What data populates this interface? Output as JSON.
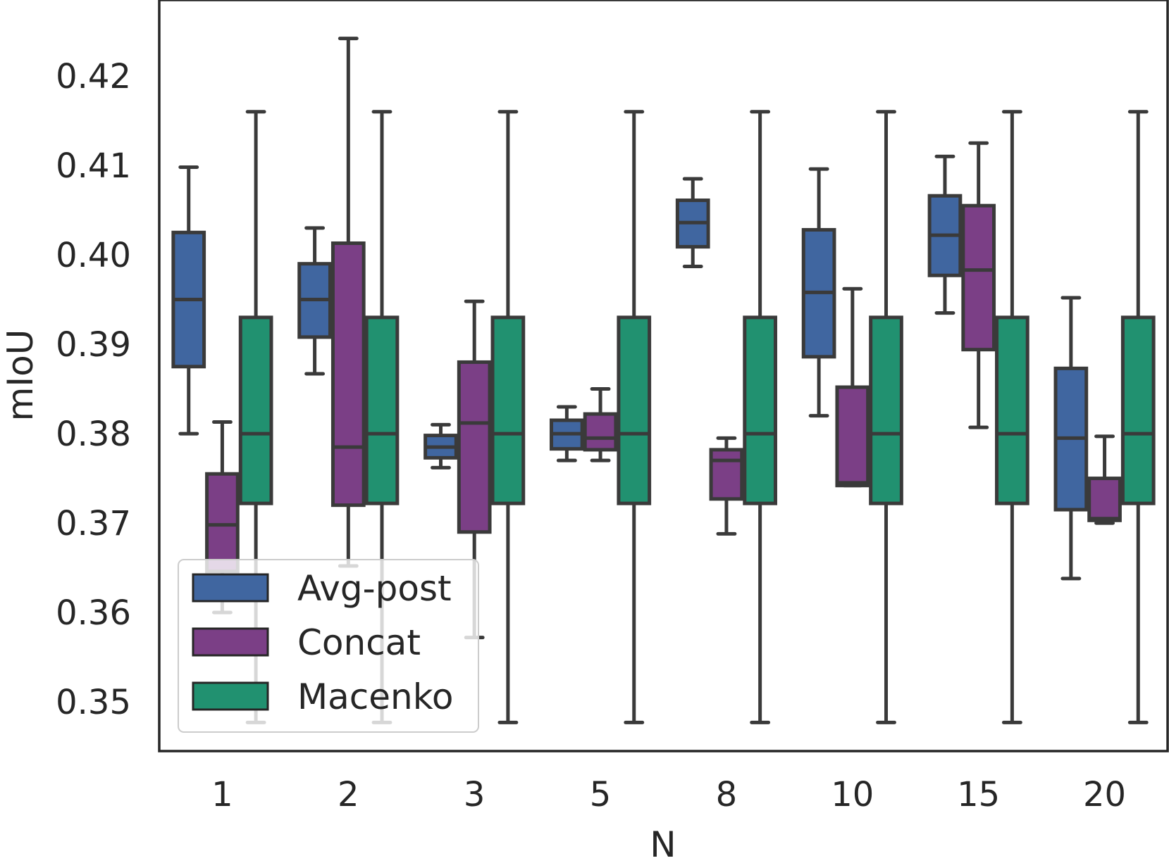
{
  "chart_data": {
    "type": "box",
    "title": "",
    "xlabel": "N",
    "ylabel": "mIoU",
    "ylim": [
      0.3445,
      0.4285
    ],
    "yticks": [
      "0.35",
      "0.36",
      "0.37",
      "0.38",
      "0.39",
      "0.40",
      "0.41",
      "0.42"
    ],
    "categories": [
      "1",
      "2",
      "3",
      "5",
      "8",
      "10",
      "15",
      "20"
    ],
    "legend": {
      "position": "lower-left",
      "entries": [
        "Avg-post",
        "Concat",
        "Macenko"
      ]
    },
    "series": [
      {
        "name": "Avg-post",
        "color": "#4066a0",
        "boxes": [
          {
            "whislo": 0.38,
            "q1": 0.3875,
            "med": 0.395,
            "q3": 0.4025,
            "whishi": 0.4098
          },
          {
            "whislo": 0.3867,
            "q1": 0.3908,
            "med": 0.395,
            "q3": 0.399,
            "whishi": 0.403
          },
          {
            "whislo": 0.3762,
            "q1": 0.3773,
            "med": 0.3785,
            "q3": 0.3798,
            "whishi": 0.381
          },
          {
            "whislo": 0.377,
            "q1": 0.3783,
            "med": 0.38,
            "q3": 0.3815,
            "whishi": 0.383
          },
          {
            "whislo": 0.3987,
            "q1": 0.4009,
            "med": 0.4036,
            "q3": 0.4061,
            "whishi": 0.4085
          },
          {
            "whislo": 0.382,
            "q1": 0.3886,
            "med": 0.3958,
            "q3": 0.4028,
            "whishi": 0.4096
          },
          {
            "whislo": 0.3935,
            "q1": 0.3977,
            "med": 0.4022,
            "q3": 0.4066,
            "whishi": 0.411
          },
          {
            "whislo": 0.3638,
            "q1": 0.3715,
            "med": 0.3795,
            "q3": 0.3873,
            "whishi": 0.3952
          }
        ]
      },
      {
        "name": "Concat",
        "color": "#7b3f86",
        "boxes": [
          {
            "whislo": 0.36,
            "q1": 0.3646,
            "med": 0.3698,
            "q3": 0.3755,
            "whishi": 0.3813
          },
          {
            "whislo": 0.3652,
            "q1": 0.372,
            "med": 0.3785,
            "q3": 0.4013,
            "whishi": 0.4242
          },
          {
            "whislo": 0.3572,
            "q1": 0.369,
            "med": 0.3812,
            "q3": 0.388,
            "whishi": 0.3948
          },
          {
            "whislo": 0.377,
            "q1": 0.3782,
            "med": 0.3795,
            "q3": 0.3822,
            "whishi": 0.385
          },
          {
            "whislo": 0.3688,
            "q1": 0.3727,
            "med": 0.377,
            "q3": 0.3782,
            "whishi": 0.3795
          },
          {
            "whislo": 0.3742,
            "q1": 0.3742,
            "med": 0.3745,
            "q3": 0.3852,
            "whishi": 0.3962
          },
          {
            "whislo": 0.3807,
            "q1": 0.3894,
            "med": 0.3983,
            "q3": 0.4055,
            "whishi": 0.4125
          },
          {
            "whislo": 0.37,
            "q1": 0.3703,
            "med": 0.3705,
            "q3": 0.375,
            "whishi": 0.3797
          }
        ]
      },
      {
        "name": "Macenko",
        "color": "#219170",
        "boxes": [
          {
            "whislo": 0.3477,
            "q1": 0.3722,
            "med": 0.38,
            "q3": 0.393,
            "whishi": 0.416
          },
          {
            "whislo": 0.3477,
            "q1": 0.3722,
            "med": 0.38,
            "q3": 0.393,
            "whishi": 0.416
          },
          {
            "whislo": 0.3477,
            "q1": 0.3722,
            "med": 0.38,
            "q3": 0.393,
            "whishi": 0.416
          },
          {
            "whislo": 0.3477,
            "q1": 0.3722,
            "med": 0.38,
            "q3": 0.393,
            "whishi": 0.416
          },
          {
            "whislo": 0.3477,
            "q1": 0.3722,
            "med": 0.38,
            "q3": 0.393,
            "whishi": 0.416
          },
          {
            "whislo": 0.3477,
            "q1": 0.3722,
            "med": 0.38,
            "q3": 0.393,
            "whishi": 0.416
          },
          {
            "whislo": 0.3477,
            "q1": 0.3722,
            "med": 0.38,
            "q3": 0.393,
            "whishi": 0.416
          },
          {
            "whislo": 0.3477,
            "q1": 0.3722,
            "med": 0.38,
            "q3": 0.393,
            "whishi": 0.416
          }
        ]
      }
    ]
  }
}
